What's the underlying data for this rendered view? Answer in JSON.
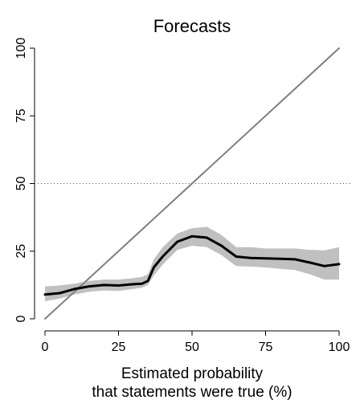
{
  "chart_data": {
    "type": "line",
    "title": "Forecasts",
    "xlabel_lines": [
      "Estimated probability",
      "that statements were true (%)"
    ],
    "ylabel": "",
    "xlim": [
      0,
      100
    ],
    "ylim": [
      0,
      100
    ],
    "xticks": [
      0,
      25,
      50,
      75,
      100
    ],
    "yticks": [
      0,
      25,
      50,
      75,
      100
    ],
    "grid": false,
    "reference_hline": {
      "y": 50,
      "style": "dotted"
    },
    "series": [
      {
        "type": "line",
        "color": "#7f7f7f",
        "x": [
          0,
          100
        ],
        "y": [
          0,
          100
        ]
      },
      {
        "type": "line_with_band",
        "color": "#000000",
        "band_color": "#c0c0c0",
        "x": [
          0,
          5,
          10,
          15,
          20,
          25,
          30,
          33,
          35,
          37,
          40,
          45,
          50,
          55,
          60,
          65,
          70,
          75,
          80,
          85,
          90,
          95,
          100
        ],
        "y": [
          9,
          9.5,
          11,
          12,
          12.5,
          12.3,
          12.8,
          13,
          14,
          19,
          23,
          28.5,
          30.5,
          30,
          27,
          23,
          22.5,
          22.3,
          22.2,
          22,
          20.8,
          19.5,
          20.2
        ],
        "lower": [
          6.5,
          7.5,
          9,
          10,
          10.5,
          10.3,
          11,
          11.5,
          12.5,
          16,
          20,
          25.5,
          27,
          26.5,
          23.5,
          19.5,
          19.3,
          19,
          18.5,
          18,
          16.5,
          14.5,
          14.5
        ],
        "upper": [
          12,
          12.3,
          13,
          14,
          14.5,
          14.5,
          15,
          15.5,
          16.5,
          22,
          26.5,
          31.5,
          33.5,
          34,
          31,
          26.5,
          26.5,
          26,
          26,
          26,
          25.5,
          25.3,
          26.5
        ]
      }
    ]
  }
}
